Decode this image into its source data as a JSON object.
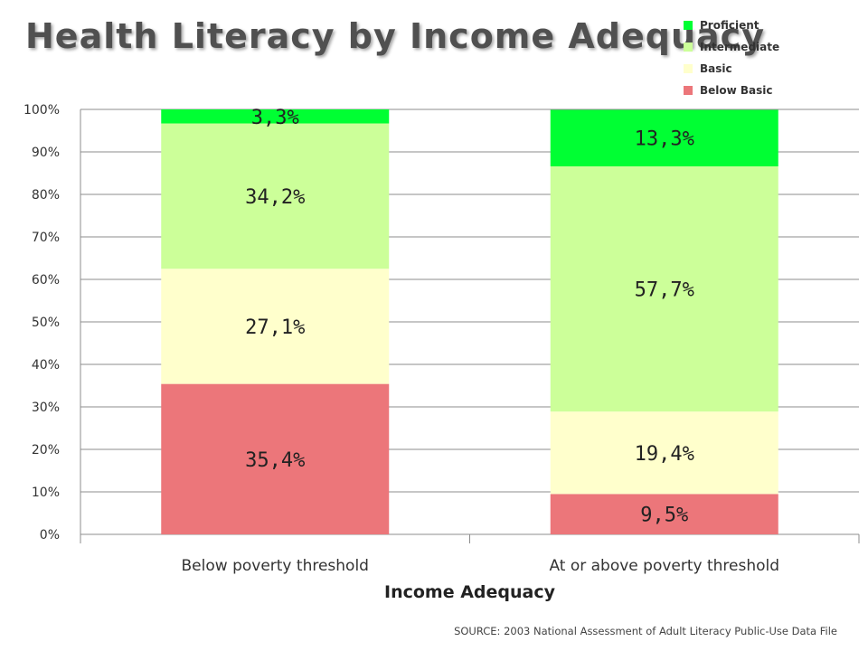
{
  "chart_data": {
    "type": "bar",
    "stacked": true,
    "title": "Health Literacy by Income Adequacy",
    "xlabel": "Income Adequacy",
    "ylabel": "",
    "ylim": [
      0,
      100
    ],
    "yticks": [
      "0%",
      "10%",
      "20%",
      "30%",
      "40%",
      "50%",
      "60%",
      "70%",
      "80%",
      "90%",
      "100%"
    ],
    "categories": [
      "Below poverty threshold",
      "At or above poverty threshold"
    ],
    "series": [
      {
        "name": "Below Basic",
        "color": "#ec767a",
        "values": [
          35.4,
          9.5
        ],
        "labels": [
          "35,4%",
          "9,5%"
        ]
      },
      {
        "name": "Basic",
        "color": "#ffffcc",
        "values": [
          27.1,
          19.4
        ],
        "labels": [
          "27,1%",
          "19,4%"
        ]
      },
      {
        "name": "Intermediate",
        "color": "#ccff99",
        "values": [
          34.2,
          57.7
        ],
        "labels": [
          "34,2%",
          "57,7%"
        ]
      },
      {
        "name": "Proficient",
        "color": "#00ff33",
        "values": [
          3.3,
          13.3
        ],
        "labels": [
          "3,3%",
          "13,3%"
        ]
      }
    ],
    "legend": {
      "placement": "top-right",
      "entries": [
        "Proficient",
        "Intermediate",
        "Basic",
        "Below Basic"
      ],
      "colors": [
        "#00ff33",
        "#ccff99",
        "#ffffcc",
        "#ec767a"
      ]
    },
    "grid": true
  },
  "footer": {
    "source": "SOURCE: 2003 National Assessment of Adult Literacy Public-Use Data File"
  }
}
